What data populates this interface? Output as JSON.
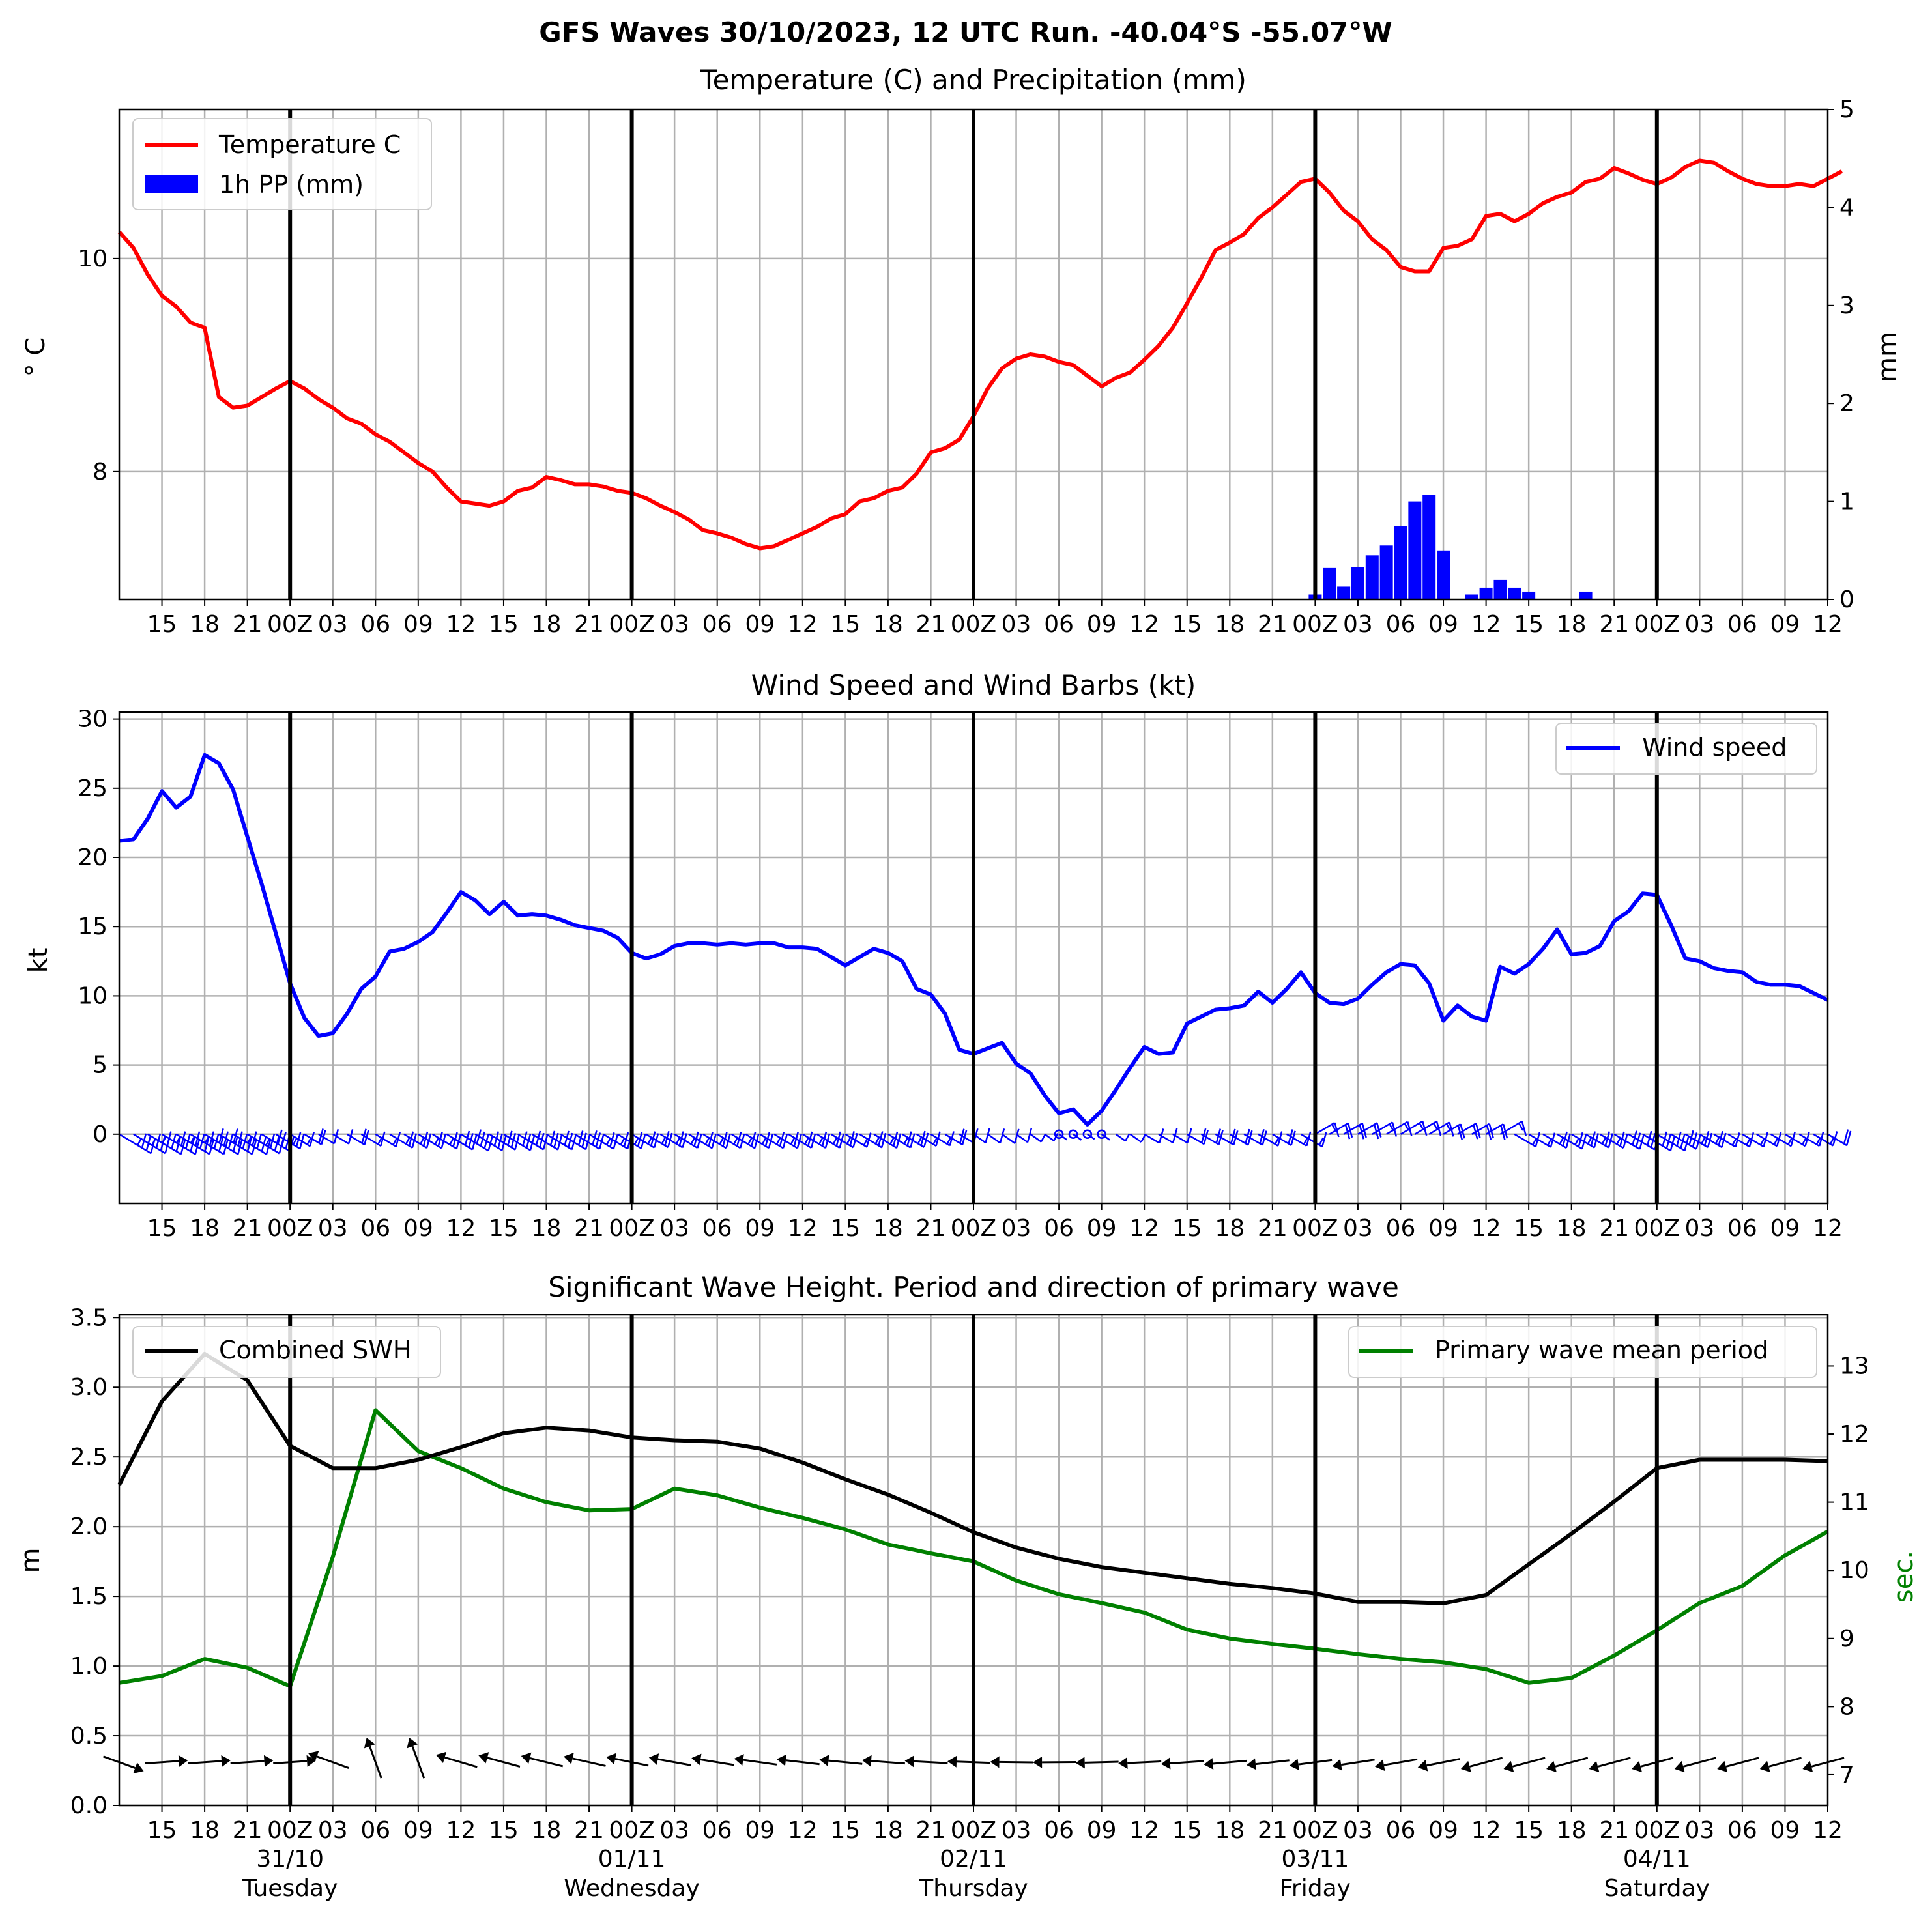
{
  "figure": {
    "title": "GFS Waves 30/10/2023, 12 UTC Run. -40.04°S -55.07°W"
  },
  "x_axis": {
    "hour_ticks": [
      "15",
      "18",
      "21",
      "00Z",
      "03",
      "06",
      "09",
      "12",
      "15",
      "18",
      "21",
      "00Z",
      "03",
      "06",
      "09",
      "12",
      "15",
      "18",
      "21",
      "00Z",
      "03",
      "06",
      "09",
      "12",
      "15",
      "18",
      "21",
      "00Z",
      "03",
      "06",
      "09",
      "12",
      "15",
      "18",
      "21",
      "00Z",
      "03",
      "06",
      "09",
      "12"
    ],
    "day_labels": [
      {
        "date": "31/10",
        "weekday": "Tuesday"
      },
      {
        "date": "01/11",
        "weekday": "Wednesday"
      },
      {
        "date": "02/11",
        "weekday": "Thursday"
      },
      {
        "date": "03/11",
        "weekday": "Friday"
      },
      {
        "date": "04/11",
        "weekday": "Saturday"
      }
    ],
    "start_time": "30/10 12Z",
    "end_time": "04/11 12Z"
  },
  "colors": {
    "temperature": "#ff0000",
    "precipitation": "#0000ff",
    "wind": "#0000ff",
    "swh": "#000000",
    "period": "#008000",
    "grid": "#b0b0b0"
  },
  "chart_data": [
    {
      "type": "line",
      "title": "Temperature (C) and Precipitation (mm)",
      "ylabel": "° C",
      "ylabel_right": "mm",
      "ylim": [
        6.8,
        11.4
      ],
      "ylim_right": [
        0,
        5
      ],
      "yticks": [
        "8",
        "10"
      ],
      "yticks_right": [
        "0",
        "1",
        "2",
        "3",
        "4",
        "5"
      ],
      "legend": [
        "Temperature C",
        "1h PP (mm)"
      ],
      "legend_position": "top-left",
      "grid": true,
      "temperature": [
        10.25,
        10.1,
        9.85,
        9.65,
        9.55,
        9.4,
        9.35,
        8.7,
        8.6,
        8.62,
        8.7,
        8.78,
        8.85,
        8.78,
        8.68,
        8.6,
        8.5,
        8.45,
        8.35,
        8.28,
        8.18,
        8.08,
        8.0,
        7.85,
        7.72,
        7.7,
        7.68,
        7.72,
        7.82,
        7.85,
        7.95,
        7.92,
        7.88,
        7.88,
        7.86,
        7.82,
        7.8,
        7.75,
        7.68,
        7.62,
        7.55,
        7.45,
        7.42,
        7.38,
        7.32,
        7.28,
        7.3,
        7.36,
        7.42,
        7.48,
        7.56,
        7.6,
        7.72,
        7.75,
        7.82,
        7.85,
        7.98,
        8.18,
        8.22,
        8.3,
        8.52,
        8.78,
        8.97,
        9.06,
        9.1,
        9.08,
        9.03,
        9.0,
        8.9,
        8.8,
        8.88,
        8.93,
        9.05,
        9.18,
        9.35,
        9.58,
        9.82,
        10.08,
        10.15,
        10.23,
        10.38,
        10.48,
        10.6,
        10.72,
        10.75,
        10.62,
        10.45,
        10.35,
        10.18,
        10.08,
        9.92,
        9.88,
        9.88,
        10.1,
        10.12,
        10.18,
        10.4,
        10.42,
        10.35,
        10.42,
        10.52,
        10.58,
        10.62,
        10.72,
        10.75,
        10.85,
        10.8,
        10.74,
        10.7,
        10.76,
        10.86,
        10.92,
        10.9,
        10.82,
        10.75,
        10.7,
        10.68,
        10.68,
        10.7,
        10.68,
        10.75,
        10.82
      ],
      "precipitation": [
        [
          84,
          0.05
        ],
        [
          85,
          0.32
        ],
        [
          86,
          0.13
        ],
        [
          87,
          0.33
        ],
        [
          88,
          0.45
        ],
        [
          89,
          0.55
        ],
        [
          90,
          0.75
        ],
        [
          91,
          1.0
        ],
        [
          92,
          1.07
        ],
        [
          93,
          0.5
        ],
        [
          95,
          0.05
        ],
        [
          96,
          0.12
        ],
        [
          97,
          0.2
        ],
        [
          98,
          0.12
        ],
        [
          99,
          0.08
        ],
        [
          103,
          0.08
        ]
      ]
    },
    {
      "type": "line",
      "title": "Wind Speed and Wind Barbs (kt)",
      "ylabel": "kt",
      "ylim": [
        -5,
        30.5
      ],
      "yticks": [
        "0",
        "5",
        "10",
        "15",
        "20",
        "25",
        "30"
      ],
      "legend": [
        "Wind speed"
      ],
      "legend_position": "top-right",
      "grid": true,
      "wind_speed": [
        21.2,
        21.3,
        22.8,
        24.8,
        23.6,
        24.4,
        27.4,
        26.8,
        24.9,
        21.5,
        18.1,
        14.5,
        10.9,
        8.4,
        7.1,
        7.3,
        8.7,
        10.5,
        11.4,
        13.2,
        13.4,
        13.9,
        14.6,
        16.0,
        17.5,
        16.9,
        15.9,
        16.8,
        15.8,
        15.9,
        15.8,
        15.5,
        15.1,
        14.9,
        14.7,
        14.2,
        13.1,
        12.7,
        13.0,
        13.6,
        13.8,
        13.8,
        13.7,
        13.8,
        13.7,
        13.8,
        13.8,
        13.5,
        13.5,
        13.4,
        12.8,
        12.2,
        12.8,
        13.4,
        13.1,
        12.5,
        10.5,
        10.1,
        8.7,
        6.1,
        5.8,
        6.2,
        6.6,
        5.1,
        4.4,
        2.8,
        1.5,
        1.8,
        0.7,
        1.7,
        3.2,
        4.8,
        6.3,
        5.8,
        5.9,
        8.0,
        8.5,
        9.0,
        9.1,
        9.3,
        10.3,
        9.5,
        10.5,
        11.7,
        10.2,
        9.5,
        9.4,
        9.8,
        10.8,
        11.7,
        12.3,
        12.2,
        10.9,
        8.2,
        9.3,
        8.5,
        8.2,
        12.1,
        11.6,
        12.3,
        13.4,
        14.8,
        13.0,
        13.1,
        13.6,
        15.4,
        16.1,
        17.4,
        17.3,
        15.1,
        12.7,
        12.5,
        12.0,
        11.8,
        11.7,
        11.0,
        10.8,
        10.8,
        10.7,
        10.2,
        9.7
      ]
    },
    {
      "type": "line",
      "title": "Significant Wave Height. Period and direction of primary wave",
      "ylabel": "m",
      "ylabel_right": "sec.",
      "ylim": [
        0,
        3.52
      ],
      "ylim_right": [
        6.55,
        13.75
      ],
      "yticks": [
        "0.0",
        "0.5",
        "1.0",
        "1.5",
        "2.0",
        "2.5",
        "3.0",
        "3.5"
      ],
      "yticks_right": [
        "7",
        "8",
        "9",
        "10",
        "11",
        "12",
        "13"
      ],
      "legend": [
        "Combined SWH",
        "Primary wave mean period"
      ],
      "legend_positions": [
        "top-left",
        "top-right"
      ],
      "grid": true,
      "x_step_hours": 3,
      "combined_swh": [
        2.3,
        2.9,
        3.24,
        3.05,
        2.58,
        2.42,
        2.42,
        2.48,
        2.57,
        2.67,
        2.71,
        2.69,
        2.64,
        2.62,
        2.61,
        2.56,
        2.46,
        2.34,
        2.23,
        2.1,
        1.96,
        1.85,
        1.77,
        1.71,
        1.67,
        1.63,
        1.59,
        1.56,
        1.52,
        1.46,
        1.46,
        1.45,
        1.51,
        1.73,
        1.95,
        2.18,
        2.42,
        2.48,
        2.48,
        2.48,
        2.47
      ],
      "primary_wave_mean_period": [
        8.35,
        8.45,
        8.7,
        8.57,
        8.3,
        10.2,
        12.35,
        11.75,
        11.5,
        11.2,
        11.0,
        10.88,
        10.9,
        11.2,
        11.1,
        10.92,
        10.77,
        10.6,
        10.38,
        10.25,
        10.13,
        9.85,
        9.65,
        9.52,
        9.38,
        9.13,
        9.0,
        8.92,
        8.85,
        8.77,
        8.7,
        8.65,
        8.55,
        8.35,
        8.42,
        8.75,
        9.12,
        9.52,
        9.77,
        10.22,
        10.57
      ],
      "primary_wave_direction_arrows": true
    }
  ]
}
